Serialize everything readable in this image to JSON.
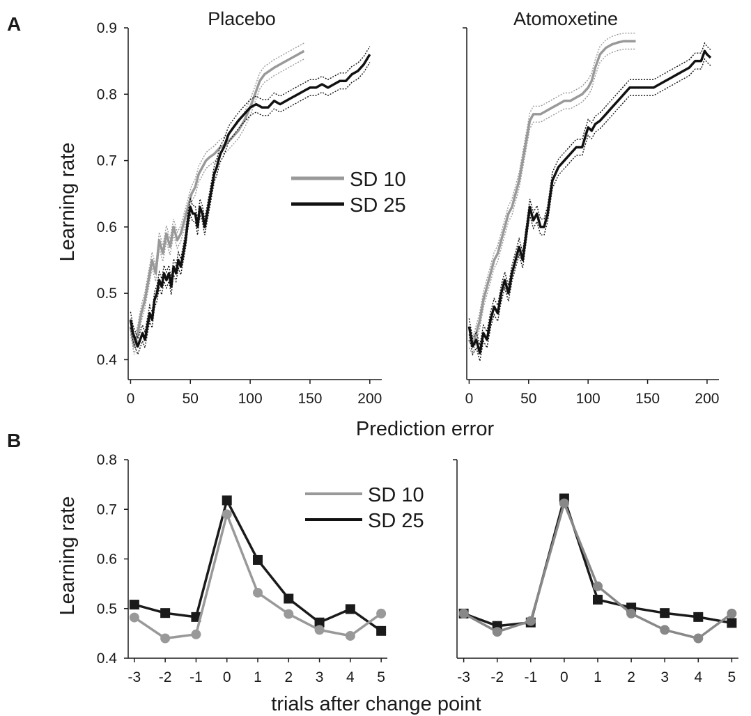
{
  "panel_labels": [
    "A",
    "B"
  ],
  "legend": [
    {
      "label": "SD 10",
      "color": "#999999"
    },
    {
      "label": "SD 25",
      "color": "#111111"
    }
  ],
  "chart_data": [
    {
      "id": "A-placebo",
      "type": "line",
      "title": "Placebo",
      "xlabel": "Prediction error",
      "ylabel": "Learning rate",
      "xlim": [
        -2,
        210
      ],
      "ylim": [
        0.37,
        0.9
      ],
      "xticks": [
        0,
        50,
        100,
        150,
        200
      ],
      "yticks": [
        0.4,
        0.5,
        0.6,
        0.7,
        0.8,
        0.9
      ],
      "band": 0.012,
      "series": [
        {
          "name": "SD 10",
          "color": "#999999",
          "x": [
            0,
            3,
            6,
            9,
            12,
            15,
            18,
            21,
            24,
            27,
            30,
            33,
            36,
            39,
            42,
            45,
            48,
            51,
            54,
            57,
            60,
            63,
            66,
            70,
            75,
            80,
            85,
            90,
            95,
            100,
            104,
            108,
            112,
            116,
            120,
            125,
            130,
            135,
            140,
            145
          ],
          "y": [
            0.45,
            0.42,
            0.44,
            0.47,
            0.49,
            0.52,
            0.55,
            0.53,
            0.58,
            0.56,
            0.59,
            0.57,
            0.6,
            0.58,
            0.59,
            0.61,
            0.63,
            0.65,
            0.66,
            0.68,
            0.69,
            0.7,
            0.705,
            0.71,
            0.72,
            0.725,
            0.735,
            0.745,
            0.76,
            0.78,
            0.8,
            0.82,
            0.83,
            0.835,
            0.84,
            0.845,
            0.85,
            0.855,
            0.86,
            0.865
          ]
        },
        {
          "name": "SD 25",
          "color": "#111111",
          "x": [
            0,
            2,
            4,
            6,
            8,
            10,
            12,
            14,
            16,
            18,
            20,
            22,
            24,
            26,
            28,
            30,
            32,
            34,
            36,
            38,
            40,
            42,
            44,
            46,
            48,
            50,
            52,
            54,
            56,
            58,
            60,
            62,
            64,
            66,
            68,
            70,
            72,
            75,
            78,
            82,
            86,
            90,
            95,
            100,
            105,
            110,
            115,
            120,
            125,
            130,
            135,
            140,
            145,
            150,
            155,
            160,
            165,
            170,
            175,
            180,
            185,
            190,
            195,
            200
          ],
          "y": [
            0.46,
            0.44,
            0.43,
            0.42,
            0.43,
            0.44,
            0.43,
            0.45,
            0.47,
            0.46,
            0.49,
            0.5,
            0.52,
            0.51,
            0.53,
            0.52,
            0.53,
            0.51,
            0.54,
            0.53,
            0.55,
            0.54,
            0.56,
            0.58,
            0.61,
            0.63,
            0.62,
            0.62,
            0.6,
            0.63,
            0.62,
            0.6,
            0.62,
            0.64,
            0.66,
            0.68,
            0.69,
            0.71,
            0.72,
            0.74,
            0.75,
            0.76,
            0.77,
            0.78,
            0.785,
            0.78,
            0.78,
            0.79,
            0.785,
            0.79,
            0.795,
            0.8,
            0.805,
            0.81,
            0.81,
            0.815,
            0.81,
            0.815,
            0.82,
            0.82,
            0.83,
            0.835,
            0.845,
            0.86
          ]
        }
      ]
    },
    {
      "id": "A-atomoxetine",
      "type": "line",
      "title": "Atomoxetine",
      "xlabel": "",
      "ylabel": "",
      "xlim": [
        -2,
        210
      ],
      "ylim": [
        0.37,
        0.9
      ],
      "xticks": [
        0,
        50,
        100,
        150,
        200
      ],
      "yticks": [],
      "band": 0.012,
      "series": [
        {
          "name": "SD 10",
          "color": "#999999",
          "x": [
            0,
            3,
            6,
            9,
            12,
            15,
            18,
            21,
            24,
            27,
            30,
            33,
            36,
            39,
            42,
            45,
            48,
            51,
            54,
            57,
            60,
            65,
            70,
            75,
            80,
            85,
            90,
            95,
            100,
            103,
            106,
            110,
            115,
            120,
            125,
            130,
            135,
            140
          ],
          "y": [
            0.43,
            0.42,
            0.44,
            0.46,
            0.49,
            0.51,
            0.53,
            0.55,
            0.56,
            0.58,
            0.6,
            0.62,
            0.63,
            0.65,
            0.67,
            0.7,
            0.73,
            0.76,
            0.77,
            0.77,
            0.77,
            0.775,
            0.78,
            0.785,
            0.79,
            0.79,
            0.795,
            0.8,
            0.81,
            0.82,
            0.84,
            0.86,
            0.87,
            0.875,
            0.878,
            0.88,
            0.88,
            0.88
          ]
        },
        {
          "name": "SD 25",
          "color": "#111111",
          "x": [
            0,
            3,
            6,
            9,
            12,
            15,
            18,
            21,
            24,
            27,
            30,
            33,
            36,
            39,
            42,
            45,
            48,
            51,
            54,
            57,
            60,
            63,
            66,
            70,
            75,
            80,
            85,
            90,
            95,
            100,
            103,
            106,
            110,
            115,
            120,
            125,
            130,
            135,
            140,
            145,
            150,
            155,
            160,
            165,
            170,
            175,
            180,
            185,
            190,
            195,
            198,
            200,
            203
          ],
          "y": [
            0.45,
            0.42,
            0.43,
            0.41,
            0.44,
            0.43,
            0.46,
            0.48,
            0.47,
            0.5,
            0.52,
            0.5,
            0.53,
            0.55,
            0.57,
            0.55,
            0.59,
            0.63,
            0.61,
            0.62,
            0.6,
            0.6,
            0.62,
            0.67,
            0.69,
            0.7,
            0.71,
            0.72,
            0.72,
            0.75,
            0.745,
            0.755,
            0.76,
            0.77,
            0.78,
            0.79,
            0.8,
            0.81,
            0.81,
            0.81,
            0.81,
            0.81,
            0.815,
            0.82,
            0.825,
            0.83,
            0.835,
            0.84,
            0.85,
            0.85,
            0.865,
            0.86,
            0.855
          ]
        }
      ]
    },
    {
      "id": "B-placebo",
      "type": "line",
      "title": "",
      "xlabel": "trials after change point",
      "ylabel": "Learning rate",
      "xlim": [
        -3.2,
        5.2
      ],
      "ylim": [
        0.4,
        0.8
      ],
      "xticks": [
        -3,
        -2,
        -1,
        0,
        1,
        2,
        3,
        4,
        5
      ],
      "yticks": [
        0.4,
        0.5,
        0.6,
        0.7,
        0.8
      ],
      "series": [
        {
          "name": "SD 25",
          "color": "#1a1a1a",
          "marker": "square",
          "x": [
            -3,
            -2,
            -1,
            0,
            1,
            2,
            3,
            4,
            5
          ],
          "y": [
            0.508,
            0.491,
            0.483,
            0.718,
            0.598,
            0.52,
            0.472,
            0.499,
            0.455
          ]
        },
        {
          "name": "SD 10",
          "color": "#999999",
          "marker": "circle",
          "x": [
            -3,
            -2,
            -1,
            0,
            1,
            2,
            3,
            4,
            5
          ],
          "y": [
            0.482,
            0.44,
            0.448,
            0.69,
            0.532,
            0.489,
            0.457,
            0.445,
            0.49
          ]
        }
      ]
    },
    {
      "id": "B-atomoxetine",
      "type": "line",
      "title": "",
      "xlabel": "",
      "ylabel": "",
      "xlim": [
        -3.2,
        5.2
      ],
      "ylim": [
        0.4,
        0.8
      ],
      "xticks": [
        -3,
        -2,
        -1,
        0,
        1,
        2,
        3,
        4,
        5
      ],
      "yticks": [],
      "series": [
        {
          "name": "SD 25",
          "color": "#1a1a1a",
          "marker": "square",
          "x": [
            -3,
            -2,
            -1,
            0,
            1,
            2,
            3,
            4,
            5
          ],
          "y": [
            0.49,
            0.465,
            0.472,
            0.722,
            0.518,
            0.502,
            0.491,
            0.483,
            0.471
          ]
        },
        {
          "name": "SD 10",
          "color": "#888888",
          "marker": "circle",
          "x": [
            -3,
            -2,
            -1,
            0,
            1,
            2,
            3,
            4,
            5
          ],
          "y": [
            0.49,
            0.453,
            0.475,
            0.712,
            0.545,
            0.49,
            0.457,
            0.44,
            0.49
          ]
        }
      ]
    }
  ]
}
